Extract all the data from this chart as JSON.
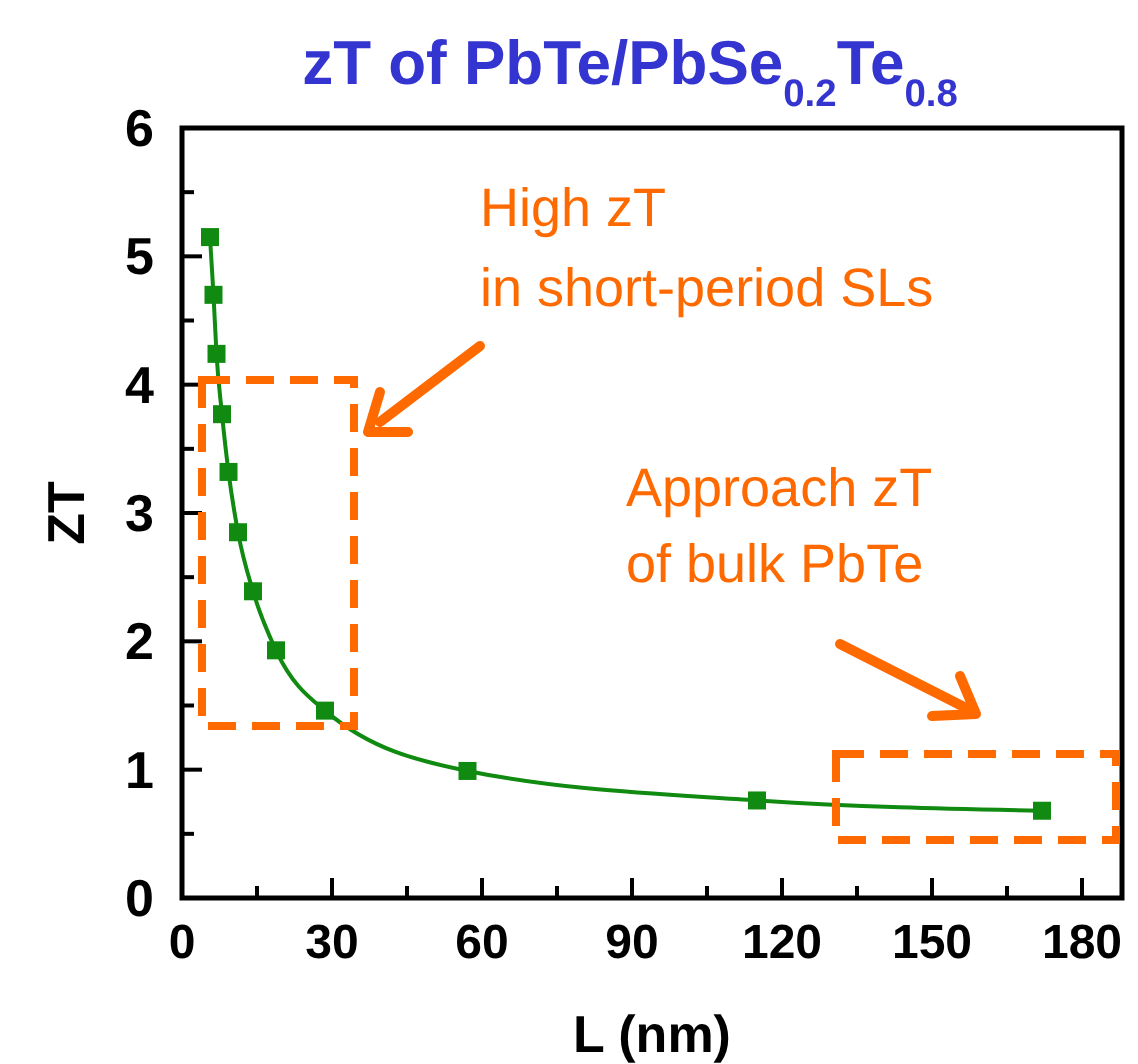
{
  "chart_data": {
    "type": "line",
    "title": "zT of PbTe/PbSe$_{0.2}$Te$_{0.8}$",
    "xlabel": "L (nm)",
    "ylabel": "ZT",
    "x": [
      5.6,
      6.3,
      6.9,
      8.0,
      9.3,
      11.2,
      14.2,
      18.8,
      28.6,
      57.1,
      115,
      172
    ],
    "series": [
      {
        "color": "#108a10",
        "values": [
          5.15,
          4.7,
          4.24,
          3.77,
          3.32,
          2.85,
          2.39,
          1.93,
          1.46,
          0.99,
          0.76,
          0.68
        ]
      }
    ],
    "xlim": [
      0,
      188
    ],
    "ylim": [
      0,
      6
    ],
    "xticks": [
      0,
      {
        "value": 15,
        "label": null
      },
      30,
      {
        "value": 45,
        "label": null
      },
      60,
      {
        "value": 75,
        "label": null
      },
      90,
      {
        "value": 105,
        "label": null
      },
      120,
      {
        "value": 135,
        "label": null
      },
      150,
      {
        "value": 165,
        "label": null
      },
      180
    ],
    "yticks": [
      0,
      {
        "value": 0.5,
        "label": null
      },
      1,
      {
        "value": 1.5,
        "label": null
      },
      2,
      {
        "value": 2.5,
        "label": null
      },
      3,
      {
        "value": 3.5,
        "label": null
      },
      4,
      {
        "value": 4.5,
        "label": null
      },
      5,
      {
        "value": 5.5,
        "label": null
      },
      6
    ],
    "marker": "square",
    "line_style": "solid",
    "grid": false,
    "annotations": [
      "High zT",
      "in short-period SLs",
      "Approach zT",
      "of bulk PbTe"
    ]
  }
}
